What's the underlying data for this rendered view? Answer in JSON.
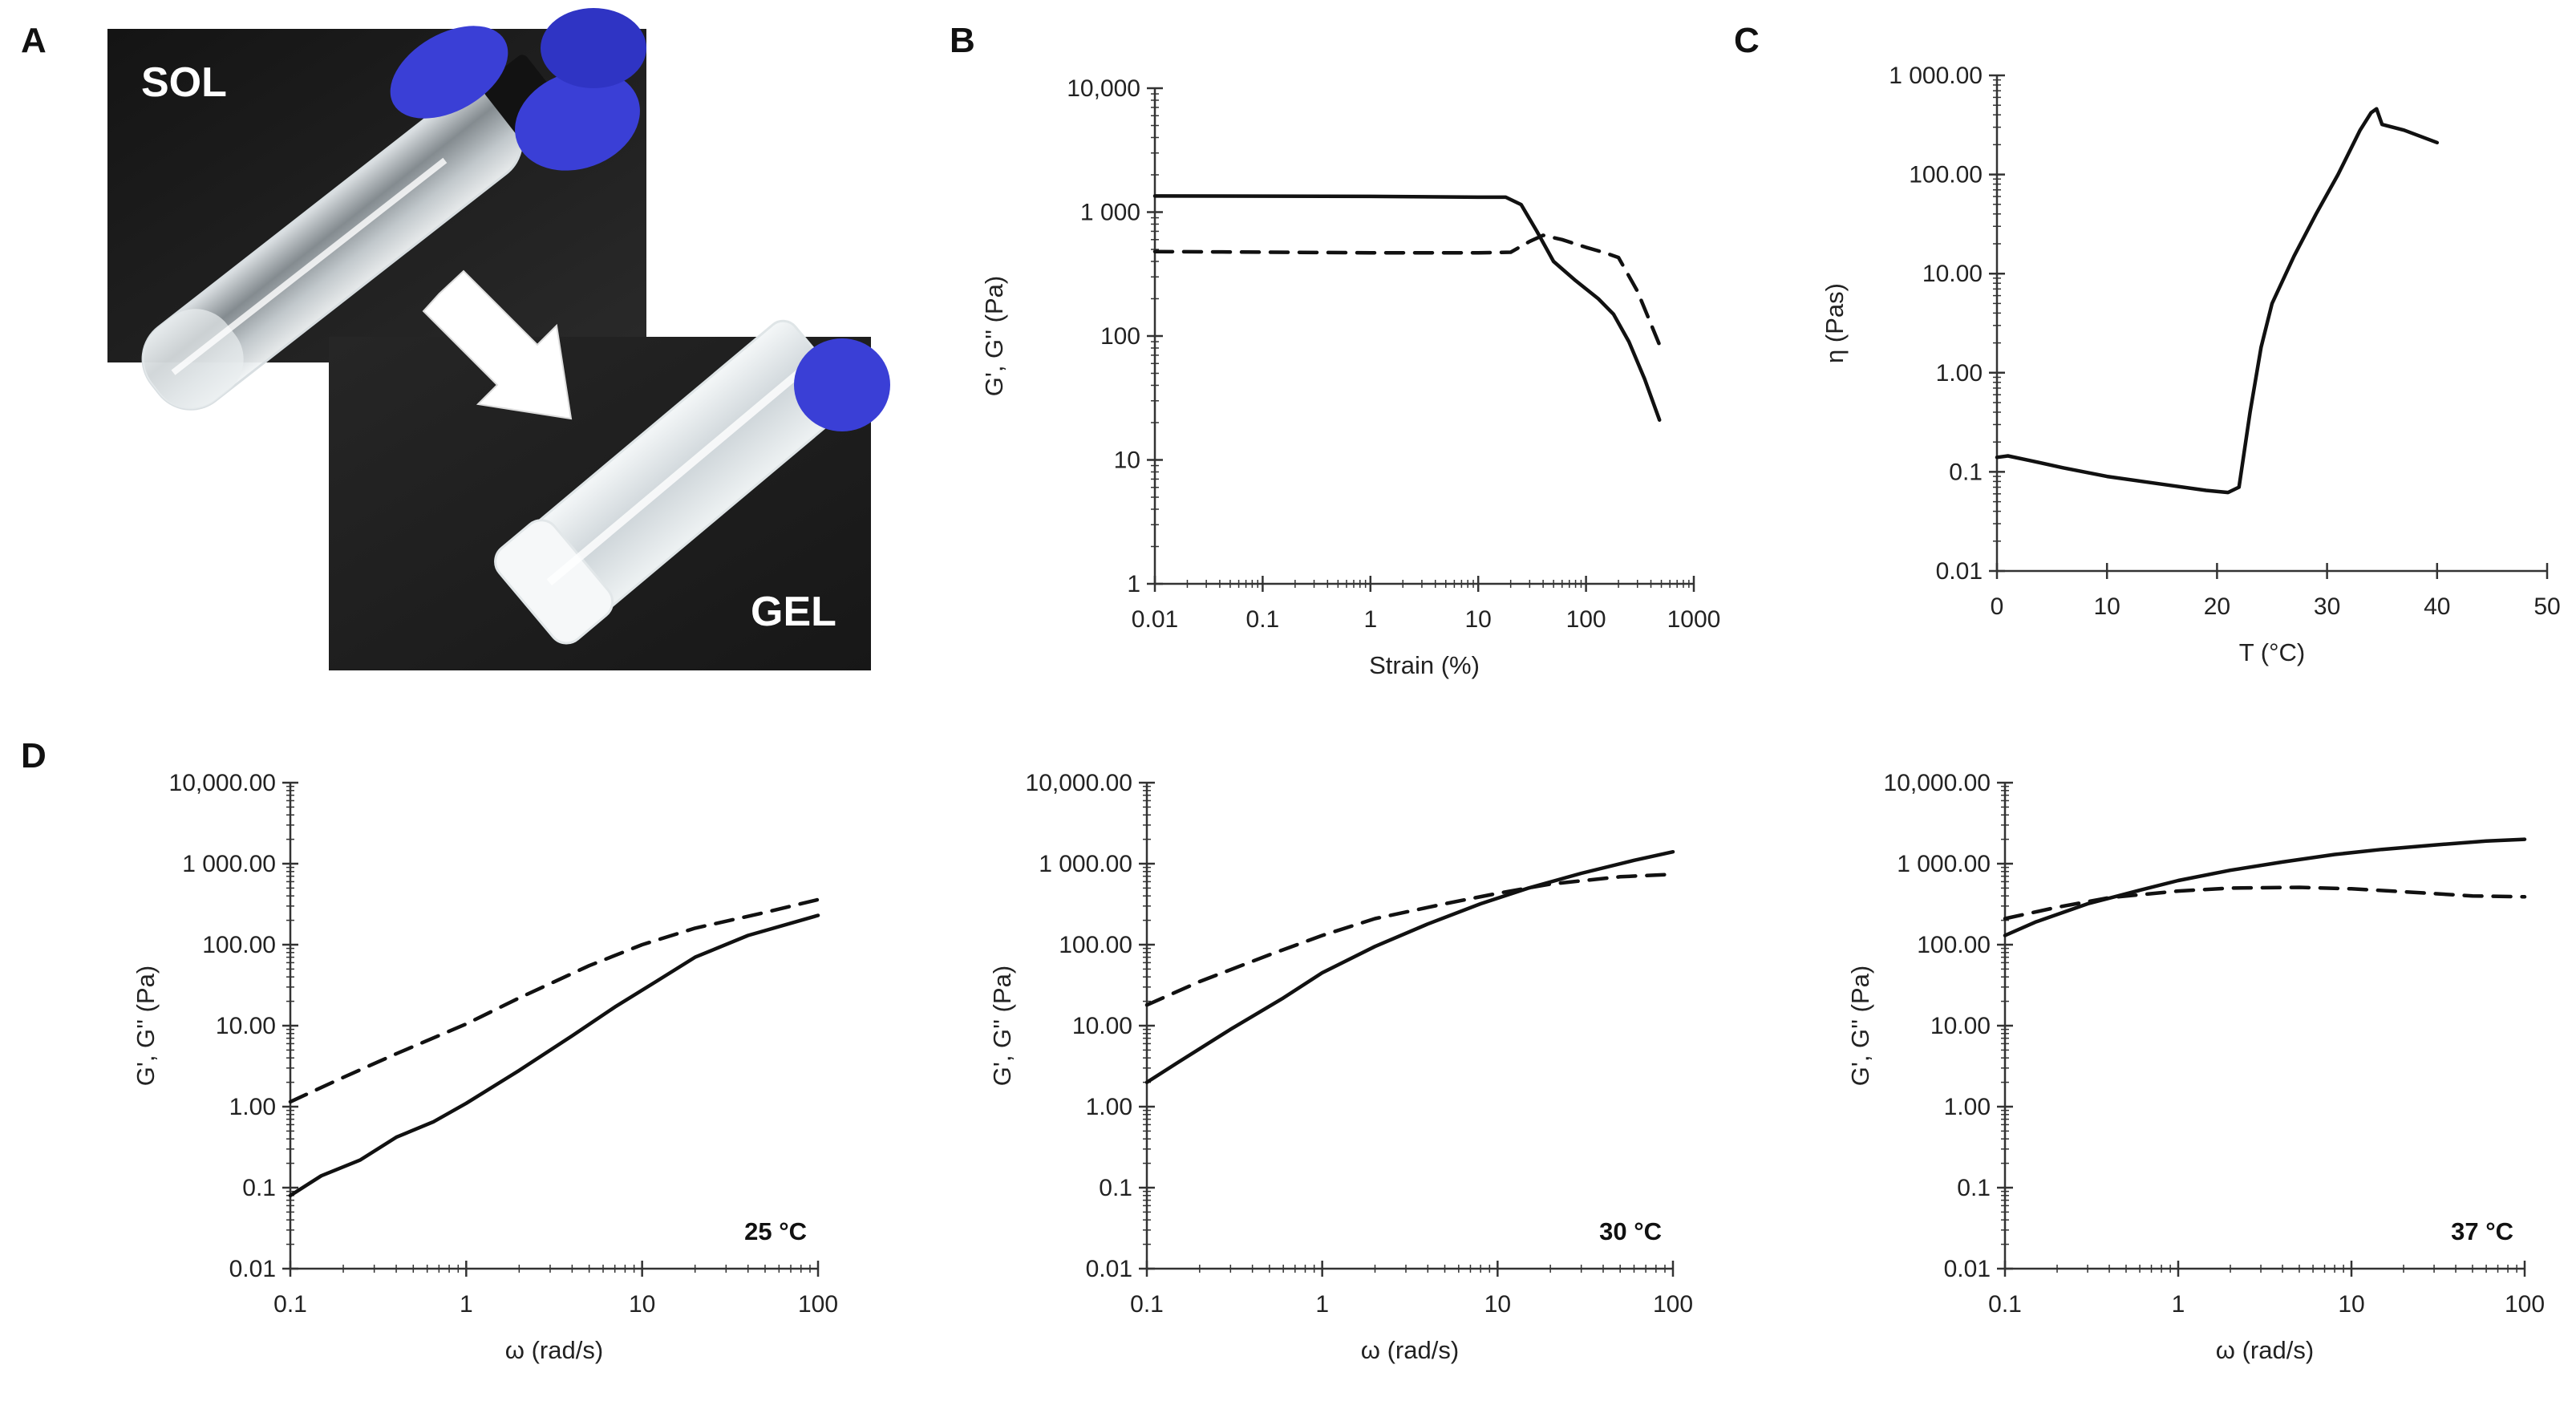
{
  "panels": {
    "A": "A",
    "B": "B",
    "C": "C",
    "D": "D"
  },
  "photos": {
    "sol_label": "SOL",
    "gel_label": "GEL",
    "glove_color": "#3a3fd6"
  },
  "chart_data": [
    {
      "id": "B",
      "type": "line",
      "xscale": "log",
      "yscale": "log",
      "xlabel": "Strain (%)",
      "ylabel": "G', G'' (Pa)",
      "xlim": [
        0.01,
        1000
      ],
      "ylim": [
        1,
        10000
      ],
      "xticks": [
        0.01,
        0.1,
        1,
        10,
        100,
        1000
      ],
      "xtick_labels": [
        "0.01",
        "0.1",
        "1",
        "10",
        "100",
        "1000"
      ],
      "yticks": [
        1,
        10,
        100,
        1000,
        10000
      ],
      "ytick_labels": [
        "1",
        "10",
        "100",
        "1 000",
        "10,000"
      ],
      "grid": false,
      "series": [
        {
          "style": "solid",
          "points": [
            [
              0.01,
              1350
            ],
            [
              1,
              1340
            ],
            [
              10,
              1320
            ],
            [
              18,
              1320
            ],
            [
              25,
              1150
            ],
            [
              35,
              700
            ],
            [
              50,
              400
            ],
            [
              80,
              280
            ],
            [
              130,
              200
            ],
            [
              180,
              150
            ],
            [
              250,
              90
            ],
            [
              350,
              45
            ],
            [
              480,
              21
            ]
          ]
        },
        {
          "style": "dashed",
          "points": [
            [
              0.01,
              480
            ],
            [
              1,
              470
            ],
            [
              10,
              470
            ],
            [
              20,
              475
            ],
            [
              30,
              580
            ],
            [
              40,
              650
            ],
            [
              60,
              600
            ],
            [
              100,
              520
            ],
            [
              150,
              470
            ],
            [
              200,
              430
            ],
            [
              300,
              230
            ],
            [
              480,
              85
            ]
          ]
        }
      ]
    },
    {
      "id": "C",
      "type": "line",
      "xscale": "linear",
      "yscale": "log",
      "xlabel": "T (°C)",
      "ylabel": "η (Pas)",
      "xlim": [
        0,
        50
      ],
      "ylim": [
        0.01,
        1000
      ],
      "xticks": [
        0,
        10,
        20,
        30,
        40,
        50
      ],
      "xtick_labels": [
        "0",
        "10",
        "20",
        "30",
        "40",
        "50"
      ],
      "yticks": [
        0.01,
        0.1,
        1,
        10,
        100,
        1000
      ],
      "ytick_labels": [
        "0.01",
        "0.1",
        "1.00",
        "10.00",
        "100.00",
        "1 000.00"
      ],
      "grid": false,
      "series": [
        {
          "style": "solid",
          "points": [
            [
              0,
              0.14
            ],
            [
              1,
              0.145
            ],
            [
              3,
              0.13
            ],
            [
              6,
              0.11
            ],
            [
              10,
              0.09
            ],
            [
              15,
              0.075
            ],
            [
              19,
              0.065
            ],
            [
              21,
              0.062
            ],
            [
              22,
              0.07
            ],
            [
              23,
              0.4
            ],
            [
              24,
              1.8
            ],
            [
              25,
              5
            ],
            [
              27,
              15
            ],
            [
              29,
              40
            ],
            [
              31,
              100
            ],
            [
              33,
              280
            ],
            [
              34,
              420
            ],
            [
              34.5,
              460
            ],
            [
              35,
              320
            ],
            [
              37,
              280
            ],
            [
              40,
              210
            ]
          ]
        }
      ]
    },
    {
      "id": "D1",
      "type": "line",
      "xscale": "log",
      "yscale": "log",
      "xlabel": "ω (rad/s)",
      "ylabel": "G', G'' (Pa)",
      "annotation": "25 °C",
      "xlim": [
        0.1,
        100
      ],
      "ylim": [
        0.01,
        10000
      ],
      "xticks": [
        0.1,
        1,
        10,
        100
      ],
      "xtick_labels": [
        "0.1",
        "1",
        "10",
        "100"
      ],
      "yticks": [
        0.01,
        0.1,
        1,
        10,
        100,
        1000,
        10000
      ],
      "ytick_labels": [
        "0.01",
        "0.1",
        "1.00",
        "10.00",
        "100.00",
        "1 000.00",
        "10,000.00"
      ],
      "grid": false,
      "series": [
        {
          "style": "solid",
          "points": [
            [
              0.1,
              0.08
            ],
            [
              0.15,
              0.14
            ],
            [
              0.25,
              0.22
            ],
            [
              0.4,
              0.42
            ],
            [
              0.65,
              0.65
            ],
            [
              1,
              1.1
            ],
            [
              2,
              2.8
            ],
            [
              4,
              7.5
            ],
            [
              7,
              17
            ],
            [
              12,
              35
            ],
            [
              20,
              70
            ],
            [
              40,
              130
            ],
            [
              100,
              230
            ]
          ]
        },
        {
          "style": "dashed",
          "points": [
            [
              0.1,
              1.15
            ],
            [
              0.2,
              2.3
            ],
            [
              0.4,
              4.5
            ],
            [
              1,
              10.5
            ],
            [
              2,
              22
            ],
            [
              5,
              55
            ],
            [
              10,
              100
            ],
            [
              20,
              160
            ],
            [
              50,
              250
            ],
            [
              100,
              360
            ]
          ]
        }
      ]
    },
    {
      "id": "D2",
      "type": "line",
      "xscale": "log",
      "yscale": "log",
      "xlabel": "ω (rad/s)",
      "ylabel": "G', G'' (Pa)",
      "annotation": "30 °C",
      "xlim": [
        0.1,
        100
      ],
      "ylim": [
        0.01,
        10000
      ],
      "xticks": [
        0.1,
        1,
        10,
        100
      ],
      "xtick_labels": [
        "0.1",
        "1",
        "10",
        "100"
      ],
      "yticks": [
        0.01,
        0.1,
        1,
        10,
        100,
        1000,
        10000
      ],
      "ytick_labels": [
        "0.01",
        "0.1",
        "1.00",
        "10.00",
        "100.00",
        "1 000.00",
        "10,000.00"
      ],
      "grid": false,
      "series": [
        {
          "style": "solid",
          "points": [
            [
              0.1,
              2
            ],
            [
              0.15,
              3.5
            ],
            [
              0.3,
              9
            ],
            [
              0.6,
              22
            ],
            [
              1,
              45
            ],
            [
              2,
              95
            ],
            [
              4,
              180
            ],
            [
              8,
              320
            ],
            [
              15,
              500
            ],
            [
              30,
              760
            ],
            [
              60,
              1100
            ],
            [
              100,
              1400
            ]
          ]
        },
        {
          "style": "dashed",
          "points": [
            [
              0.1,
              18
            ],
            [
              0.2,
              35
            ],
            [
              0.5,
              75
            ],
            [
              1,
              130
            ],
            [
              2,
              210
            ],
            [
              5,
              320
            ],
            [
              10,
              430
            ],
            [
              20,
              560
            ],
            [
              50,
              690
            ],
            [
              100,
              740
            ]
          ]
        }
      ]
    },
    {
      "id": "D3",
      "type": "line",
      "xscale": "log",
      "yscale": "log",
      "xlabel": "ω (rad/s)",
      "ylabel": "G', G'' (Pa)",
      "annotation": "37 °C",
      "xlim": [
        0.1,
        100
      ],
      "ylim": [
        0.01,
        10000
      ],
      "xticks": [
        0.1,
        1,
        10,
        100
      ],
      "xtick_labels": [
        "0.1",
        "1",
        "10",
        "100"
      ],
      "yticks": [
        0.01,
        0.1,
        1,
        10,
        100,
        1000,
        10000
      ],
      "ytick_labels": [
        "0.01",
        "0.1",
        "1.00",
        "10.00",
        "100.00",
        "1 000.00",
        "10,000.00"
      ],
      "grid": false,
      "series": [
        {
          "style": "solid",
          "points": [
            [
              0.1,
              130
            ],
            [
              0.15,
              190
            ],
            [
              0.3,
              320
            ],
            [
              0.6,
              470
            ],
            [
              1,
              620
            ],
            [
              2,
              830
            ],
            [
              4,
              1050
            ],
            [
              8,
              1300
            ],
            [
              15,
              1500
            ],
            [
              30,
              1700
            ],
            [
              60,
              1900
            ],
            [
              100,
              2000
            ]
          ]
        },
        {
          "style": "dashed",
          "points": [
            [
              0.1,
              210
            ],
            [
              0.2,
              290
            ],
            [
              0.4,
              380
            ],
            [
              1,
              460
            ],
            [
              2,
              500
            ],
            [
              5,
              510
            ],
            [
              10,
              490
            ],
            [
              20,
              450
            ],
            [
              50,
              400
            ],
            [
              100,
              390
            ]
          ]
        }
      ]
    }
  ]
}
